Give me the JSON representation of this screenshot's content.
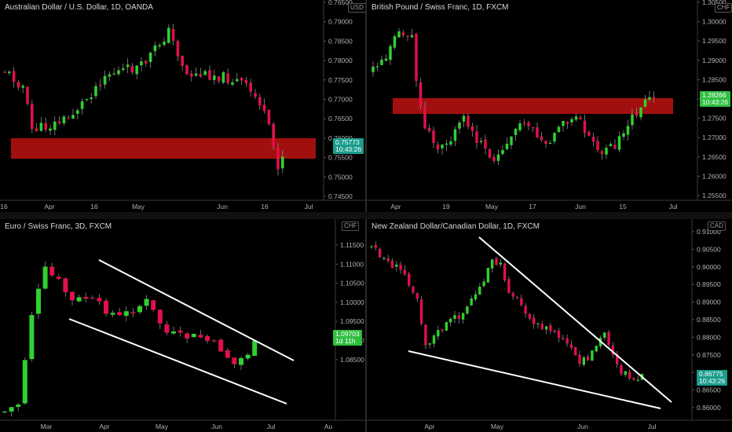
{
  "colors": {
    "up": "#2fd12f",
    "down": "#e0104a",
    "zone": "#b01010",
    "trendline": "#ffffff",
    "tag_green": "#2fbf40",
    "tag_teal": "#1a9c8c"
  },
  "panels": [
    {
      "id": "aud",
      "title": "Australian Dollar / U.S. Dollar, 1D, OANDA",
      "currency": "USD",
      "price_tag": {
        "price": "0.75773",
        "sub": "10:43:26",
        "color": "teal"
      },
      "y_labels": [
        "0.76500",
        "0.79000",
        "0.78500",
        "0.78000",
        "0.77500",
        "0.77000",
        "0.76500",
        "0.76000",
        "0.75500",
        "0.75000",
        "0.74500"
      ],
      "x_labels": [
        "16",
        "Apr",
        "16",
        "May",
        "Jun",
        "16",
        "Jul"
      ],
      "y_range": [
        0.7435,
        0.7935
      ]
    },
    {
      "id": "gbp",
      "title": "British Pound / Swiss Franc, 1D, FXCM",
      "currency": "CHF",
      "price_tag": {
        "price": "1.28266",
        "sub": "10:43:26",
        "color": "green"
      },
      "y_labels": [
        "1.30500",
        "1.30000",
        "1.29500",
        "1.29000",
        "1.28500",
        "1.28000",
        "1.27500",
        "1.27000",
        "1.26500",
        "1.26000",
        "1.25500"
      ],
      "x_labels": [
        "Apr",
        "19",
        "May",
        "17",
        "Jun",
        "15",
        "Jul"
      ],
      "y_range": [
        1.2525,
        1.3085
      ]
    },
    {
      "id": "eur",
      "title": "Euro / Swiss Franc, 3D, FXCM",
      "currency": "CHF",
      "price_tag": {
        "price": "1.09703",
        "sub": "1d 11h",
        "color": "green"
      },
      "y_labels": [
        "1.11500",
        "1.11000",
        "1.10500",
        "1.10000",
        "1.09500",
        "1.09000",
        "1.08500"
      ],
      "x_labels": [
        "Mar",
        "Apr",
        "May",
        "Jun",
        "Jul",
        "Au"
      ],
      "y_range": [
        1.0815,
        1.1185
      ]
    },
    {
      "id": "nzd",
      "title": "New Zealand Dollar/Canadian Dollar, 1D, FXCM",
      "currency": "CAD",
      "price_tag": {
        "price": "0.86775",
        "sub": "10:43:26",
        "color": "teal"
      },
      "y_labels": [
        "0.91000",
        "0.90500",
        "0.90000",
        "0.89500",
        "0.89000",
        "0.88500",
        "0.88000",
        "0.87500",
        "0.87000",
        "0.86500",
        "0.86000"
      ],
      "x_labels": [
        "Apr",
        "May",
        "Jun",
        "Jul"
      ],
      "y_range": [
        0.8565,
        0.9125
      ]
    }
  ]
}
